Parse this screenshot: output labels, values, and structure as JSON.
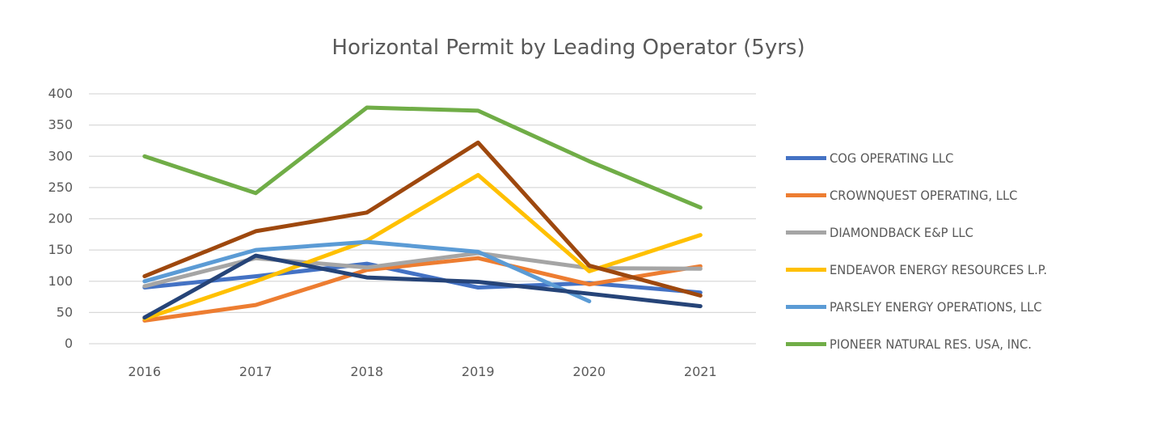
{
  "chart_data": {
    "type": "line",
    "title": "Horizontal Permit by Leading Operator (5yrs)",
    "xlabel": "",
    "ylabel": "",
    "categories": [
      "2016",
      "2017",
      "2018",
      "2019",
      "2020",
      "2021"
    ],
    "ylim": [
      0,
      400
    ],
    "yticks": [
      "0",
      "50",
      "100",
      "150",
      "200",
      "250",
      "300",
      "350",
      "400"
    ],
    "grid": true,
    "legend_position": "right",
    "series": [
      {
        "name": "COG OPERATING LLC",
        "color": "#4472C4",
        "values": [
          90,
          108,
          128,
          90,
          97,
          82
        ],
        "in_legend": true
      },
      {
        "name": "CROWNQUEST OPERATING, LLC",
        "color": "#ED7D31",
        "values": [
          37,
          62,
          118,
          137,
          95,
          124
        ],
        "in_legend": true
      },
      {
        "name": "DIAMONDBACK E&P LLC",
        "color": "#A5A5A5",
        "values": [
          92,
          137,
          122,
          145,
          121,
          120
        ],
        "in_legend": true
      },
      {
        "name": "ENDEAVOR ENERGY RESOURCES L.P.",
        "color": "#FFC000",
        "values": [
          40,
          100,
          165,
          270,
          116,
          174
        ],
        "in_legend": true
      },
      {
        "name": "PARSLEY ENERGY OPERATIONS, LLC",
        "color": "#5B9BD5",
        "values": [
          100,
          150,
          163,
          147,
          68,
          null
        ],
        "in_legend": true
      },
      {
        "name": "PIONEER NATURAL RES. USA, INC.",
        "color": "#70AD47",
        "values": [
          300,
          241,
          378,
          373,
          292,
          218
        ],
        "in_legend": true
      },
      {
        "name": "",
        "color": "#264478",
        "values": [
          42,
          141,
          106,
          99,
          80,
          60
        ],
        "in_legend": false
      },
      {
        "name": "",
        "color": "#9E480E",
        "values": [
          108,
          180,
          210,
          322,
          125,
          77
        ],
        "in_legend": false
      }
    ]
  }
}
